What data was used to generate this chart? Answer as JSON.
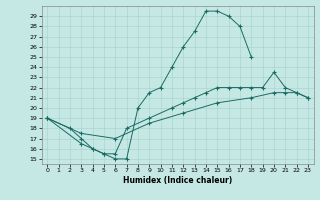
{
  "xlabel": "Humidex (Indice chaleur)",
  "xlim": [
    0,
    23
  ],
  "ylim": [
    15,
    29.5
  ],
  "xticks": [
    0,
    1,
    2,
    3,
    4,
    5,
    6,
    7,
    8,
    9,
    10,
    11,
    12,
    13,
    14,
    15,
    16,
    17,
    18,
    19,
    20,
    21,
    22,
    23
  ],
  "yticks": [
    15,
    16,
    17,
    18,
    19,
    20,
    21,
    22,
    23,
    24,
    25,
    26,
    27,
    28,
    29
  ],
  "line_color": "#1a6b62",
  "bg_color": "#c5e8e5",
  "grid_color": "#aad4d0",
  "line1_x": [
    0,
    2,
    3,
    4,
    5,
    6,
    7,
    8,
    9,
    10,
    11,
    12,
    13,
    14,
    15,
    16,
    17,
    18
  ],
  "line1_y": [
    19,
    18,
    17,
    16,
    15.5,
    15,
    15,
    20,
    21.5,
    22,
    24,
    26,
    27.5,
    29.5,
    29.5,
    29,
    28,
    25
  ],
  "line2_x": [
    0,
    3,
    4,
    5,
    6,
    7,
    9,
    11,
    12,
    13,
    14,
    15,
    16,
    17,
    18,
    19,
    20,
    21,
    22,
    23
  ],
  "line2_y": [
    19,
    16.5,
    16,
    15.5,
    15.5,
    18,
    19,
    20,
    20.5,
    21,
    21.5,
    22,
    22,
    22,
    22,
    22,
    23.5,
    22,
    21.5,
    21
  ],
  "line3_x": [
    0,
    3,
    6,
    9,
    12,
    15,
    18,
    20,
    21,
    22,
    23
  ],
  "line3_y": [
    19,
    17.5,
    17,
    18.5,
    19.5,
    20.5,
    21,
    21.5,
    21.5,
    21.5,
    21
  ]
}
